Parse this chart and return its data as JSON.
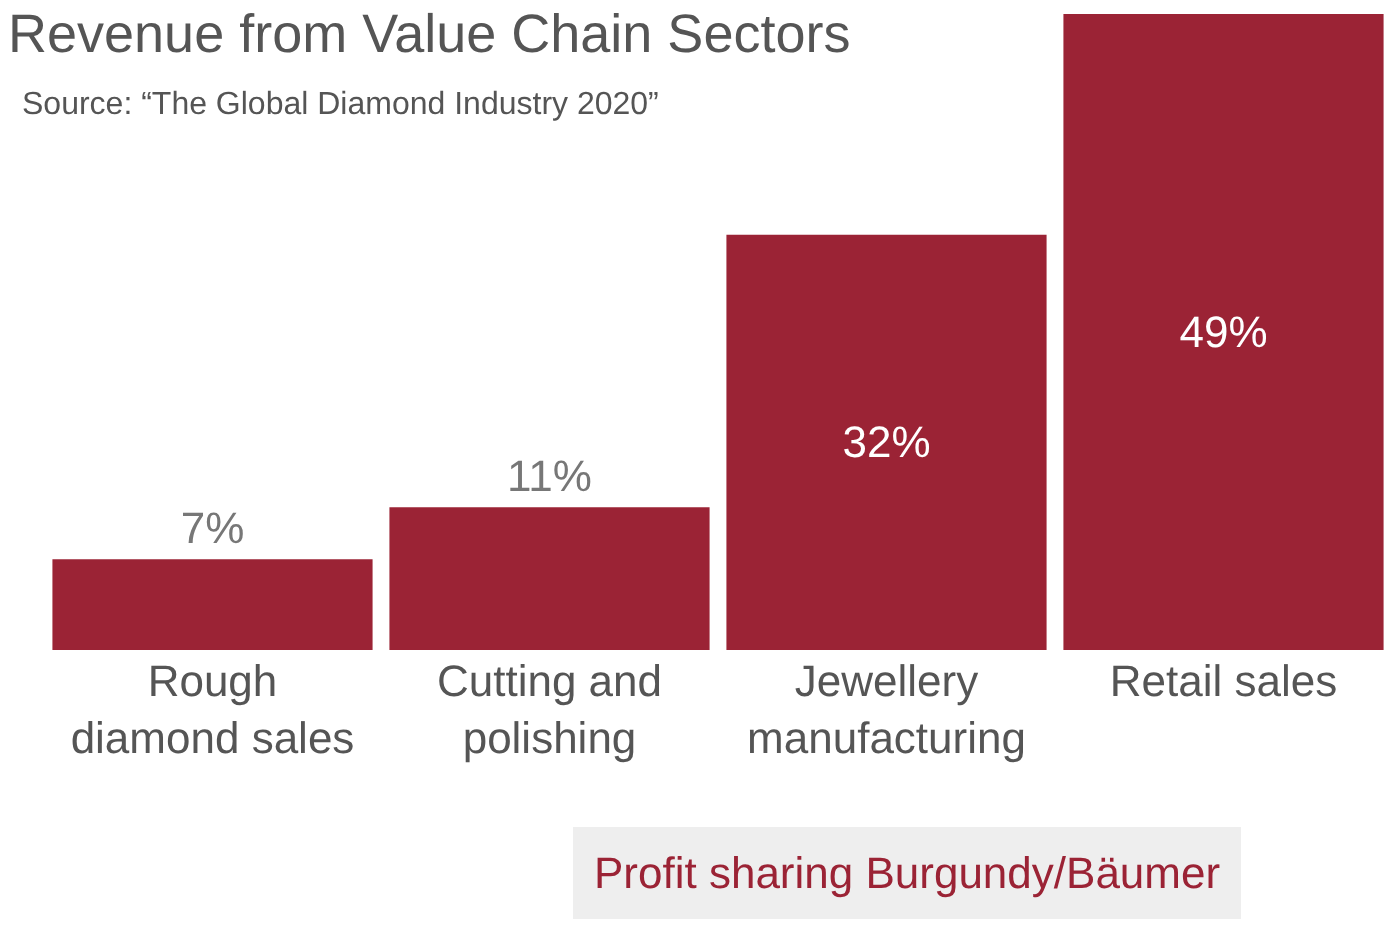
{
  "chart_data": {
    "type": "bar",
    "title": "Revenue from Value Chain Sectors",
    "subtitle": "Source: “The Global Diamond Industry 2020”",
    "categories": [
      "Rough\ndiamond sales",
      "Cutting and\npolishing",
      "Jewellery\nmanufacturing",
      "Retail sales"
    ],
    "values": [
      7,
      11,
      32,
      49
    ],
    "value_labels": [
      "7%",
      "11%",
      "32%",
      "49%"
    ],
    "color": "#9b2335",
    "legend": false,
    "annotations": [
      "Profit sharing Burgundy/Bäumer"
    ]
  }
}
